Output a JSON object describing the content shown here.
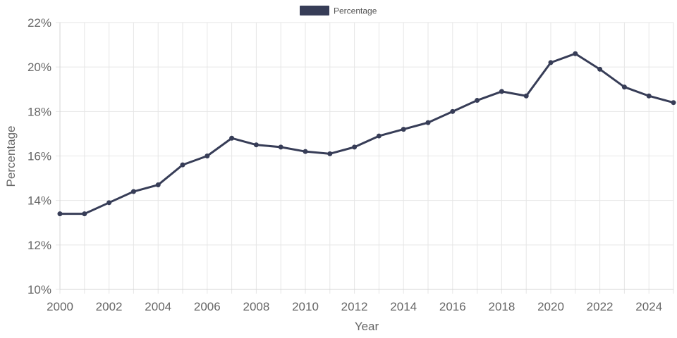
{
  "chart_data": {
    "type": "line",
    "title": "",
    "xlabel": "Year",
    "ylabel": "Percentage",
    "x": [
      2000,
      2001,
      2002,
      2003,
      2004,
      2005,
      2006,
      2007,
      2008,
      2009,
      2010,
      2011,
      2012,
      2013,
      2014,
      2015,
      2016,
      2017,
      2018,
      2019,
      2020,
      2021,
      2022,
      2023,
      2024,
      2025
    ],
    "series": [
      {
        "name": "Percentage",
        "color": "#373d57",
        "values": [
          13.4,
          13.4,
          13.9,
          14.4,
          14.7,
          15.6,
          16.0,
          16.8,
          16.5,
          16.4,
          16.2,
          16.1,
          16.4,
          16.9,
          17.2,
          17.5,
          18.0,
          18.5,
          18.9,
          18.7,
          20.2,
          20.6,
          19.9,
          19.1,
          18.7,
          18.4
        ]
      }
    ],
    "xlim": [
      2000,
      2025
    ],
    "ylim": [
      10,
      22
    ],
    "x_ticks": [
      "2000",
      "2002",
      "2004",
      "2006",
      "2008",
      "2010",
      "2012",
      "2014",
      "2016",
      "2018",
      "2020",
      "2022",
      "2024"
    ],
    "y_ticks": [
      "10%",
      "12%",
      "14%",
      "16%",
      "18%",
      "20%",
      "22%"
    ],
    "grid": true,
    "legend": {
      "position": "top-center",
      "entries": [
        "Percentage"
      ]
    }
  }
}
